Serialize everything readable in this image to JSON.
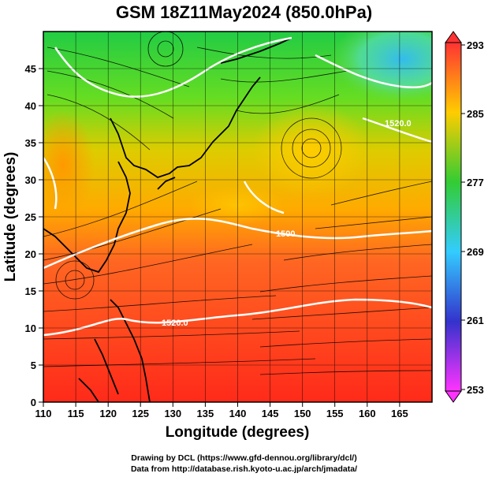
{
  "title": "GSM 18Z11May2024 (850.0hPa)",
  "x_axis": {
    "label": "Longitude (degrees)",
    "ticks": [
      "110",
      "115",
      "120",
      "125",
      "130",
      "135",
      "140",
      "145",
      "150",
      "155",
      "160",
      "165"
    ],
    "range": [
      110,
      170
    ]
  },
  "y_axis": {
    "label": "Latitude  (degrees)",
    "ticks": [
      "0",
      "5",
      "10",
      "15",
      "20",
      "25",
      "30",
      "35",
      "40",
      "45"
    ],
    "range": [
      0,
      50
    ]
  },
  "colorbar": {
    "labels": [
      "293",
      "285",
      "277",
      "269",
      "261",
      "253"
    ],
    "stops": [
      "#ff33ff",
      "#3333cc",
      "#33ccff",
      "#33cc33",
      "#ffcc00",
      "#ff3333"
    ]
  },
  "contour_labels": [
    "1520.0",
    "1520.0",
    "1500"
  ],
  "credits": {
    "line1": "Drawing by DCL (https://www.gfd-dennou.org/library/dcl/)",
    "line2": "Data from http://database.rish.kyoto-u.ac.jp/arch/jmadata/"
  }
}
